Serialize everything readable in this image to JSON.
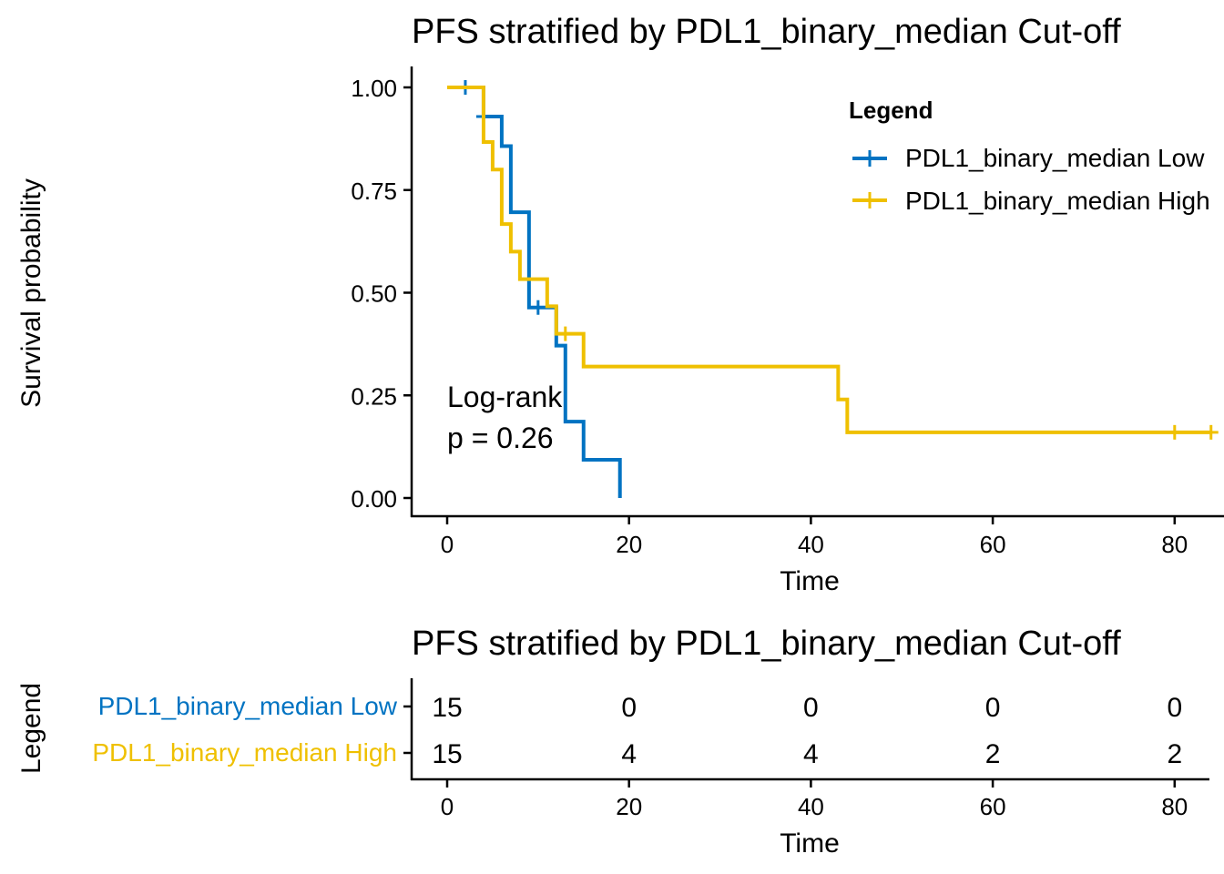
{
  "colors": {
    "low": "#0073C2",
    "high": "#EFC000",
    "axis": "#000000"
  },
  "chart_data": [
    {
      "type": "line",
      "subtype": "kaplan-meier step",
      "title": "PFS stratified by PDL1_binary_median Cut-off",
      "xlabel": "Time",
      "ylabel": "Survival probability",
      "xlim": [
        0,
        84
      ],
      "ylim": [
        0,
        1
      ],
      "x_ticks": [
        "0",
        "20",
        "40",
        "60",
        "80"
      ],
      "y_ticks": [
        "0.00",
        "0.25",
        "0.50",
        "0.75",
        "1.00"
      ],
      "legend": {
        "title": "Legend",
        "position": "top-right",
        "entries": [
          "PDL1_binary_median Low",
          "PDL1_binary_median High"
        ]
      },
      "annotation": {
        "line1": "Log-rank",
        "line2": "p = 0.26"
      },
      "series": [
        {
          "name": "PDL1_binary_median Low",
          "color": "#0073C2",
          "steps": [
            [
              0,
              1.0
            ],
            [
              4,
              0.929
            ],
            [
              6,
              0.857
            ],
            [
              7,
              0.696
            ],
            [
              9,
              0.536
            ],
            [
              9,
              0.464
            ],
            [
              12,
              0.371
            ],
            [
              13,
              0.186
            ],
            [
              15,
              0.093
            ],
            [
              19,
              0.0
            ]
          ],
          "end_x": 19,
          "censors": [
            [
              2,
              1.0
            ],
            [
              4,
              0.929
            ],
            [
              10,
              0.464
            ]
          ]
        },
        {
          "name": "PDL1_binary_median High",
          "color": "#EFC000",
          "steps": [
            [
              0,
              1.0
            ],
            [
              4,
              0.867
            ],
            [
              5,
              0.8
            ],
            [
              6,
              0.667
            ],
            [
              7,
              0.6
            ],
            [
              8,
              0.533
            ],
            [
              11,
              0.467
            ],
            [
              12,
              0.4
            ],
            [
              15,
              0.32
            ],
            [
              43,
              0.24
            ],
            [
              44,
              0.16
            ]
          ],
          "end_x": 84,
          "censors": [
            [
              13,
              0.4
            ],
            [
              80,
              0.16
            ],
            [
              84,
              0.16
            ]
          ]
        }
      ]
    },
    {
      "type": "table",
      "title": "PFS stratified by PDL1_binary_median Cut-off",
      "xlabel": "Time",
      "ylabel": "Legend",
      "x": [
        0,
        20,
        40,
        60,
        80
      ],
      "x_ticks": [
        "0",
        "20",
        "40",
        "60",
        "80"
      ],
      "rows": [
        {
          "label": "PDL1_binary_median Low",
          "color": "#0073C2",
          "values": [
            "15",
            "0",
            "0",
            "0",
            "0"
          ]
        },
        {
          "label": "PDL1_binary_median High",
          "color": "#EFC000",
          "values": [
            "15",
            "4",
            "4",
            "2",
            "2"
          ]
        }
      ]
    }
  ]
}
